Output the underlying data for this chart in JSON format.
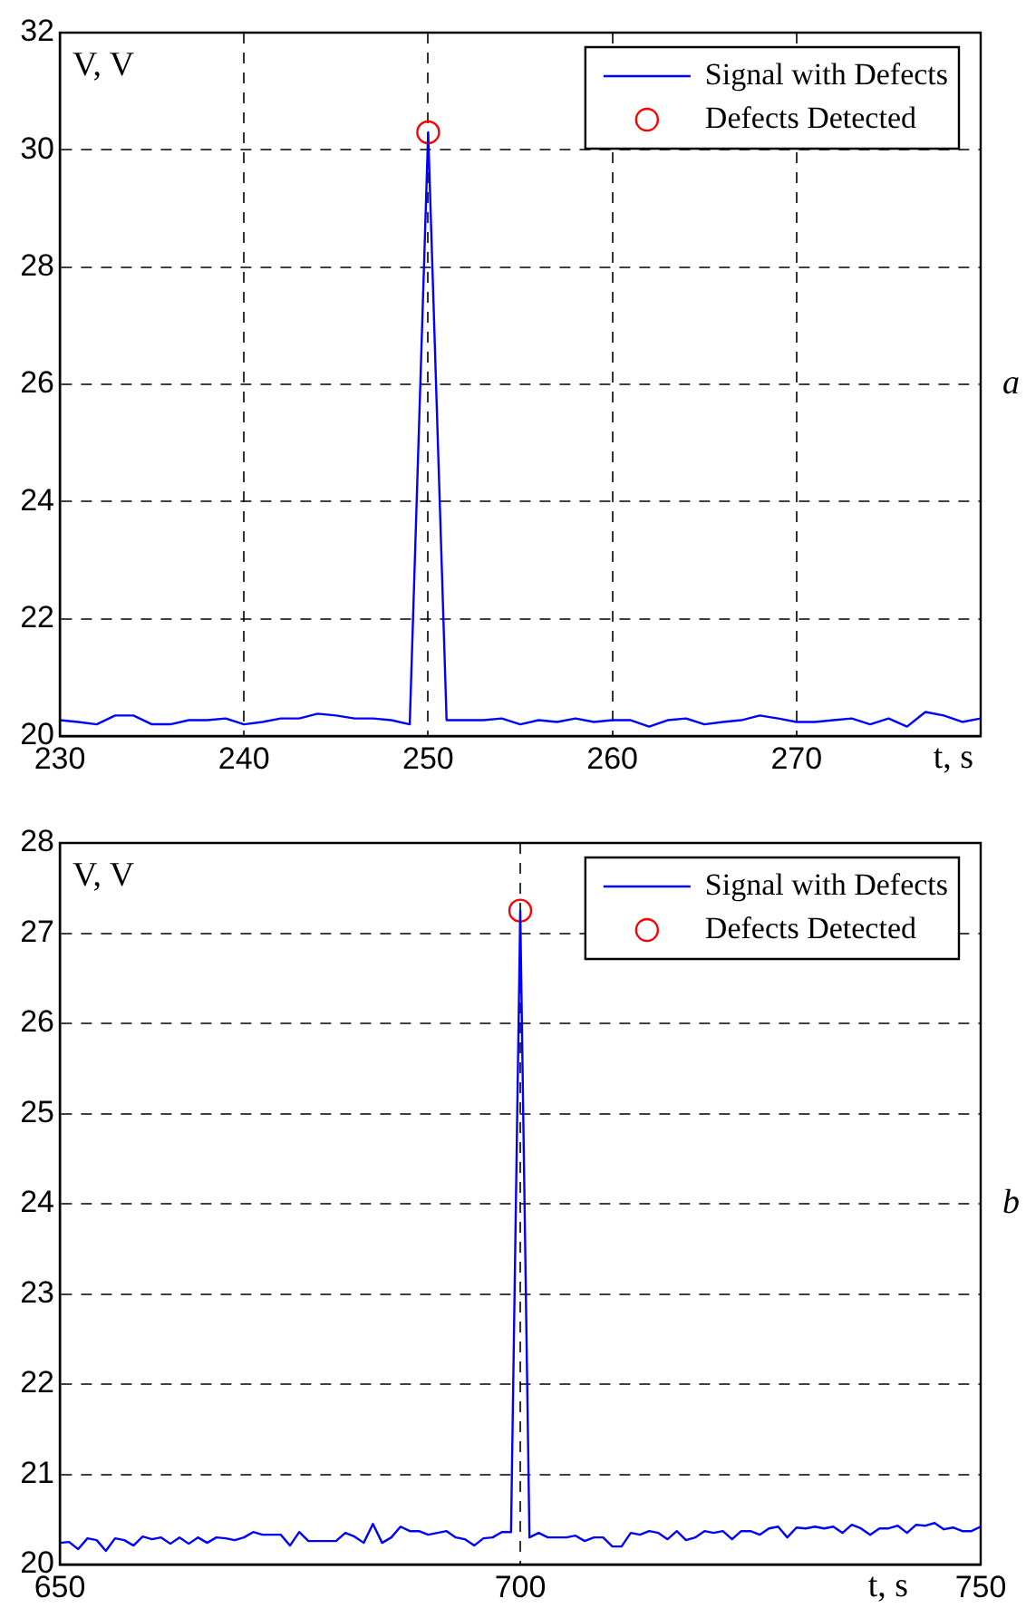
{
  "chart_data": [
    {
      "type": "line",
      "xlabel": "t, s",
      "ylabel": "V, V",
      "annotations": [
        "a"
      ],
      "xlim": [
        230,
        280
      ],
      "xticks": [
        230,
        240,
        250,
        260,
        270
      ],
      "ylim": [
        20,
        32
      ],
      "yticks": [
        20,
        22,
        24,
        26,
        28,
        30,
        32
      ],
      "grid": true,
      "legend": "top right",
      "series": [
        {
          "name": "Signal with Defects",
          "color": "#0000ff",
          "marker": "none",
          "x": [
            230,
            231,
            232,
            233,
            234,
            235,
            236,
            237,
            238,
            239,
            240,
            241,
            242,
            243,
            244,
            245,
            246,
            247,
            248,
            249,
            250,
            251,
            252,
            253,
            254,
            255,
            256,
            257,
            258,
            259,
            260,
            261,
            262,
            263,
            264,
            265,
            266,
            267,
            268,
            269,
            270,
            271,
            272,
            273,
            274,
            275,
            276,
            277,
            278,
            279,
            280
          ],
          "values": [
            20.27,
            20.24,
            20.2,
            20.35,
            20.35,
            20.2,
            20.2,
            20.27,
            20.27,
            20.3,
            20.2,
            20.24,
            20.3,
            20.3,
            20.38,
            20.35,
            20.3,
            20.3,
            20.27,
            20.2,
            30.3,
            20.27,
            20.27,
            20.27,
            20.3,
            20.2,
            20.27,
            20.24,
            20.3,
            20.24,
            20.27,
            20.27,
            20.16,
            20.27,
            20.3,
            20.2,
            20.24,
            20.27,
            20.35,
            20.3,
            20.24,
            20.24,
            20.27,
            20.3,
            20.2,
            20.3,
            20.16,
            20.41,
            20.35,
            20.24,
            20.3
          ]
        },
        {
          "name": "Defects Detected",
          "type": "scatter",
          "color": "#ff0000",
          "marker": "circle",
          "x": [
            250
          ],
          "values": [
            30.3
          ]
        }
      ]
    },
    {
      "type": "line",
      "xlabel": "t, s",
      "ylabel": "V, V",
      "annotations": [
        "b"
      ],
      "xlim": [
        650,
        750
      ],
      "xticks": [
        650,
        700,
        750
      ],
      "ylim": [
        20,
        28
      ],
      "yticks": [
        20,
        21,
        22,
        23,
        24,
        25,
        26,
        27,
        28
      ],
      "grid": true,
      "legend": "top right",
      "series": [
        {
          "name": "Signal with Defects",
          "color": "#0000ff",
          "marker": "none",
          "x": [
            650,
            651,
            652,
            653,
            654,
            655,
            656,
            657,
            658,
            659,
            660,
            661,
            662,
            663,
            664,
            665,
            666,
            667,
            668,
            669,
            670,
            671,
            672,
            673,
            674,
            675,
            676,
            677,
            678,
            679,
            680,
            681,
            682,
            683,
            684,
            685,
            686,
            687,
            688,
            689,
            690,
            691,
            692,
            693,
            694,
            695,
            696,
            697,
            698,
            699,
            700,
            701,
            702,
            703,
            704,
            705,
            706,
            707,
            708,
            709,
            710,
            711,
            712,
            713,
            714,
            715,
            716,
            717,
            718,
            719,
            720,
            721,
            722,
            723,
            724,
            725,
            726,
            727,
            728,
            729,
            730,
            731,
            732,
            733,
            734,
            735,
            736,
            737,
            738,
            739,
            740,
            741,
            742,
            743,
            744,
            745,
            746,
            747,
            748,
            749,
            750
          ],
          "values": [
            20.24,
            20.25,
            20.17,
            20.29,
            20.27,
            20.15,
            20.29,
            20.27,
            20.21,
            20.31,
            20.28,
            20.3,
            20.23,
            20.3,
            20.23,
            20.3,
            20.24,
            20.3,
            20.29,
            20.27,
            20.3,
            20.36,
            20.33,
            20.33,
            20.33,
            20.21,
            20.36,
            20.26,
            20.26,
            20.26,
            20.26,
            20.35,
            20.31,
            20.24,
            20.45,
            20.24,
            20.3,
            20.42,
            20.37,
            20.37,
            20.33,
            20.35,
            20.37,
            20.3,
            20.28,
            20.21,
            20.29,
            20.3,
            20.36,
            20.36,
            27.25,
            20.3,
            20.35,
            20.3,
            20.3,
            20.3,
            20.32,
            20.26,
            20.3,
            20.3,
            20.2,
            20.2,
            20.35,
            20.33,
            20.37,
            20.35,
            20.28,
            20.37,
            20.27,
            20.3,
            20.37,
            20.35,
            20.37,
            20.28,
            20.37,
            20.37,
            20.33,
            20.4,
            20.42,
            20.3,
            20.41,
            20.4,
            20.42,
            20.4,
            20.42,
            20.35,
            20.44,
            20.4,
            20.33,
            20.4,
            20.4,
            20.43,
            20.35,
            20.44,
            20.43,
            20.46,
            20.39,
            20.41,
            20.37,
            20.37,
            20.42
          ]
        },
        {
          "name": "Defects Detected",
          "type": "scatter",
          "color": "#ff0000",
          "marker": "circle",
          "x": [
            700
          ],
          "values": [
            27.25
          ]
        }
      ]
    }
  ]
}
